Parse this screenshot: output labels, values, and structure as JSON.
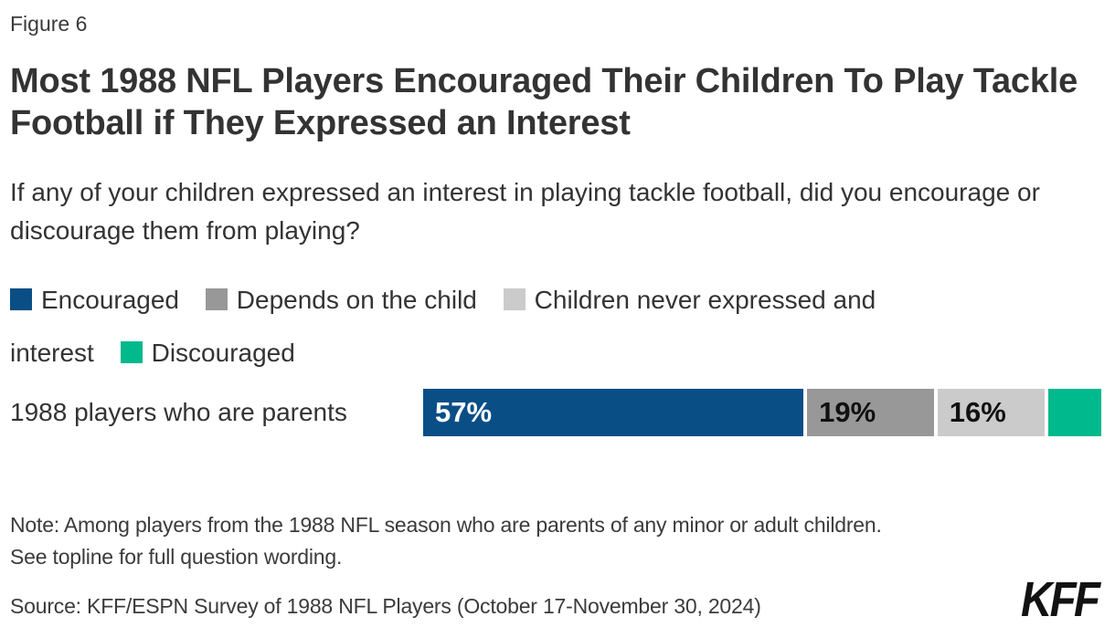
{
  "figure_label": "Figure 6",
  "title": "Most 1988 NFL Players Encouraged Their Children To Play Tackle Football if They Expressed an Interest",
  "subtitle": "If any of your children expressed an interest in playing tackle football, did you encourage or discourage them from playing?",
  "note": "Note: Among players from the 1988 NFL season who are parents of any minor or adult children. See topline for full question wording.",
  "source": "Source: KFF/ESPN Survey of 1988 NFL Players (October 17-November 30, 2024)",
  "logo_text": "KFF",
  "colors": {
    "encouraged_blue": "#0A4E86",
    "depends_gray": "#989898",
    "never_light_gray": "#CBCBCB",
    "discouraged_green": "#00B98C",
    "text_dark": "#333333",
    "bar_value_light": "#FFFFFF",
    "bar_value_dark": "#111111"
  },
  "chart_data": {
    "type": "bar",
    "variant": "horizontal-stacked",
    "title": "Most 1988 NFL Players Encouraged Their Children To Play Tackle Football if They Expressed an Interest",
    "subtitle": "If any of your children expressed an interest in playing tackle football, did you encourage or discourage them from playing?",
    "categories": [
      "1988 players who are parents"
    ],
    "series": [
      {
        "name": "Encouraged",
        "values": [
          57
        ],
        "label": "57%",
        "color": "#0A4E86",
        "label_color": "#FFFFFF"
      },
      {
        "name": "Depends on the child",
        "values": [
          19
        ],
        "label": "19%",
        "color": "#989898",
        "label_color": "#111111"
      },
      {
        "name": "Children never expressed and interest",
        "values": [
          16
        ],
        "label": "16%",
        "color": "#CBCBCB",
        "label_color": "#111111"
      },
      {
        "name": "Discouraged",
        "values": [
          8
        ],
        "label": "",
        "color": "#00B98C",
        "label_color": "#111111"
      }
    ],
    "xlim": [
      0,
      100
    ],
    "value_unit": "%",
    "legend_position": "top",
    "grid": false,
    "axes_visible": false
  }
}
